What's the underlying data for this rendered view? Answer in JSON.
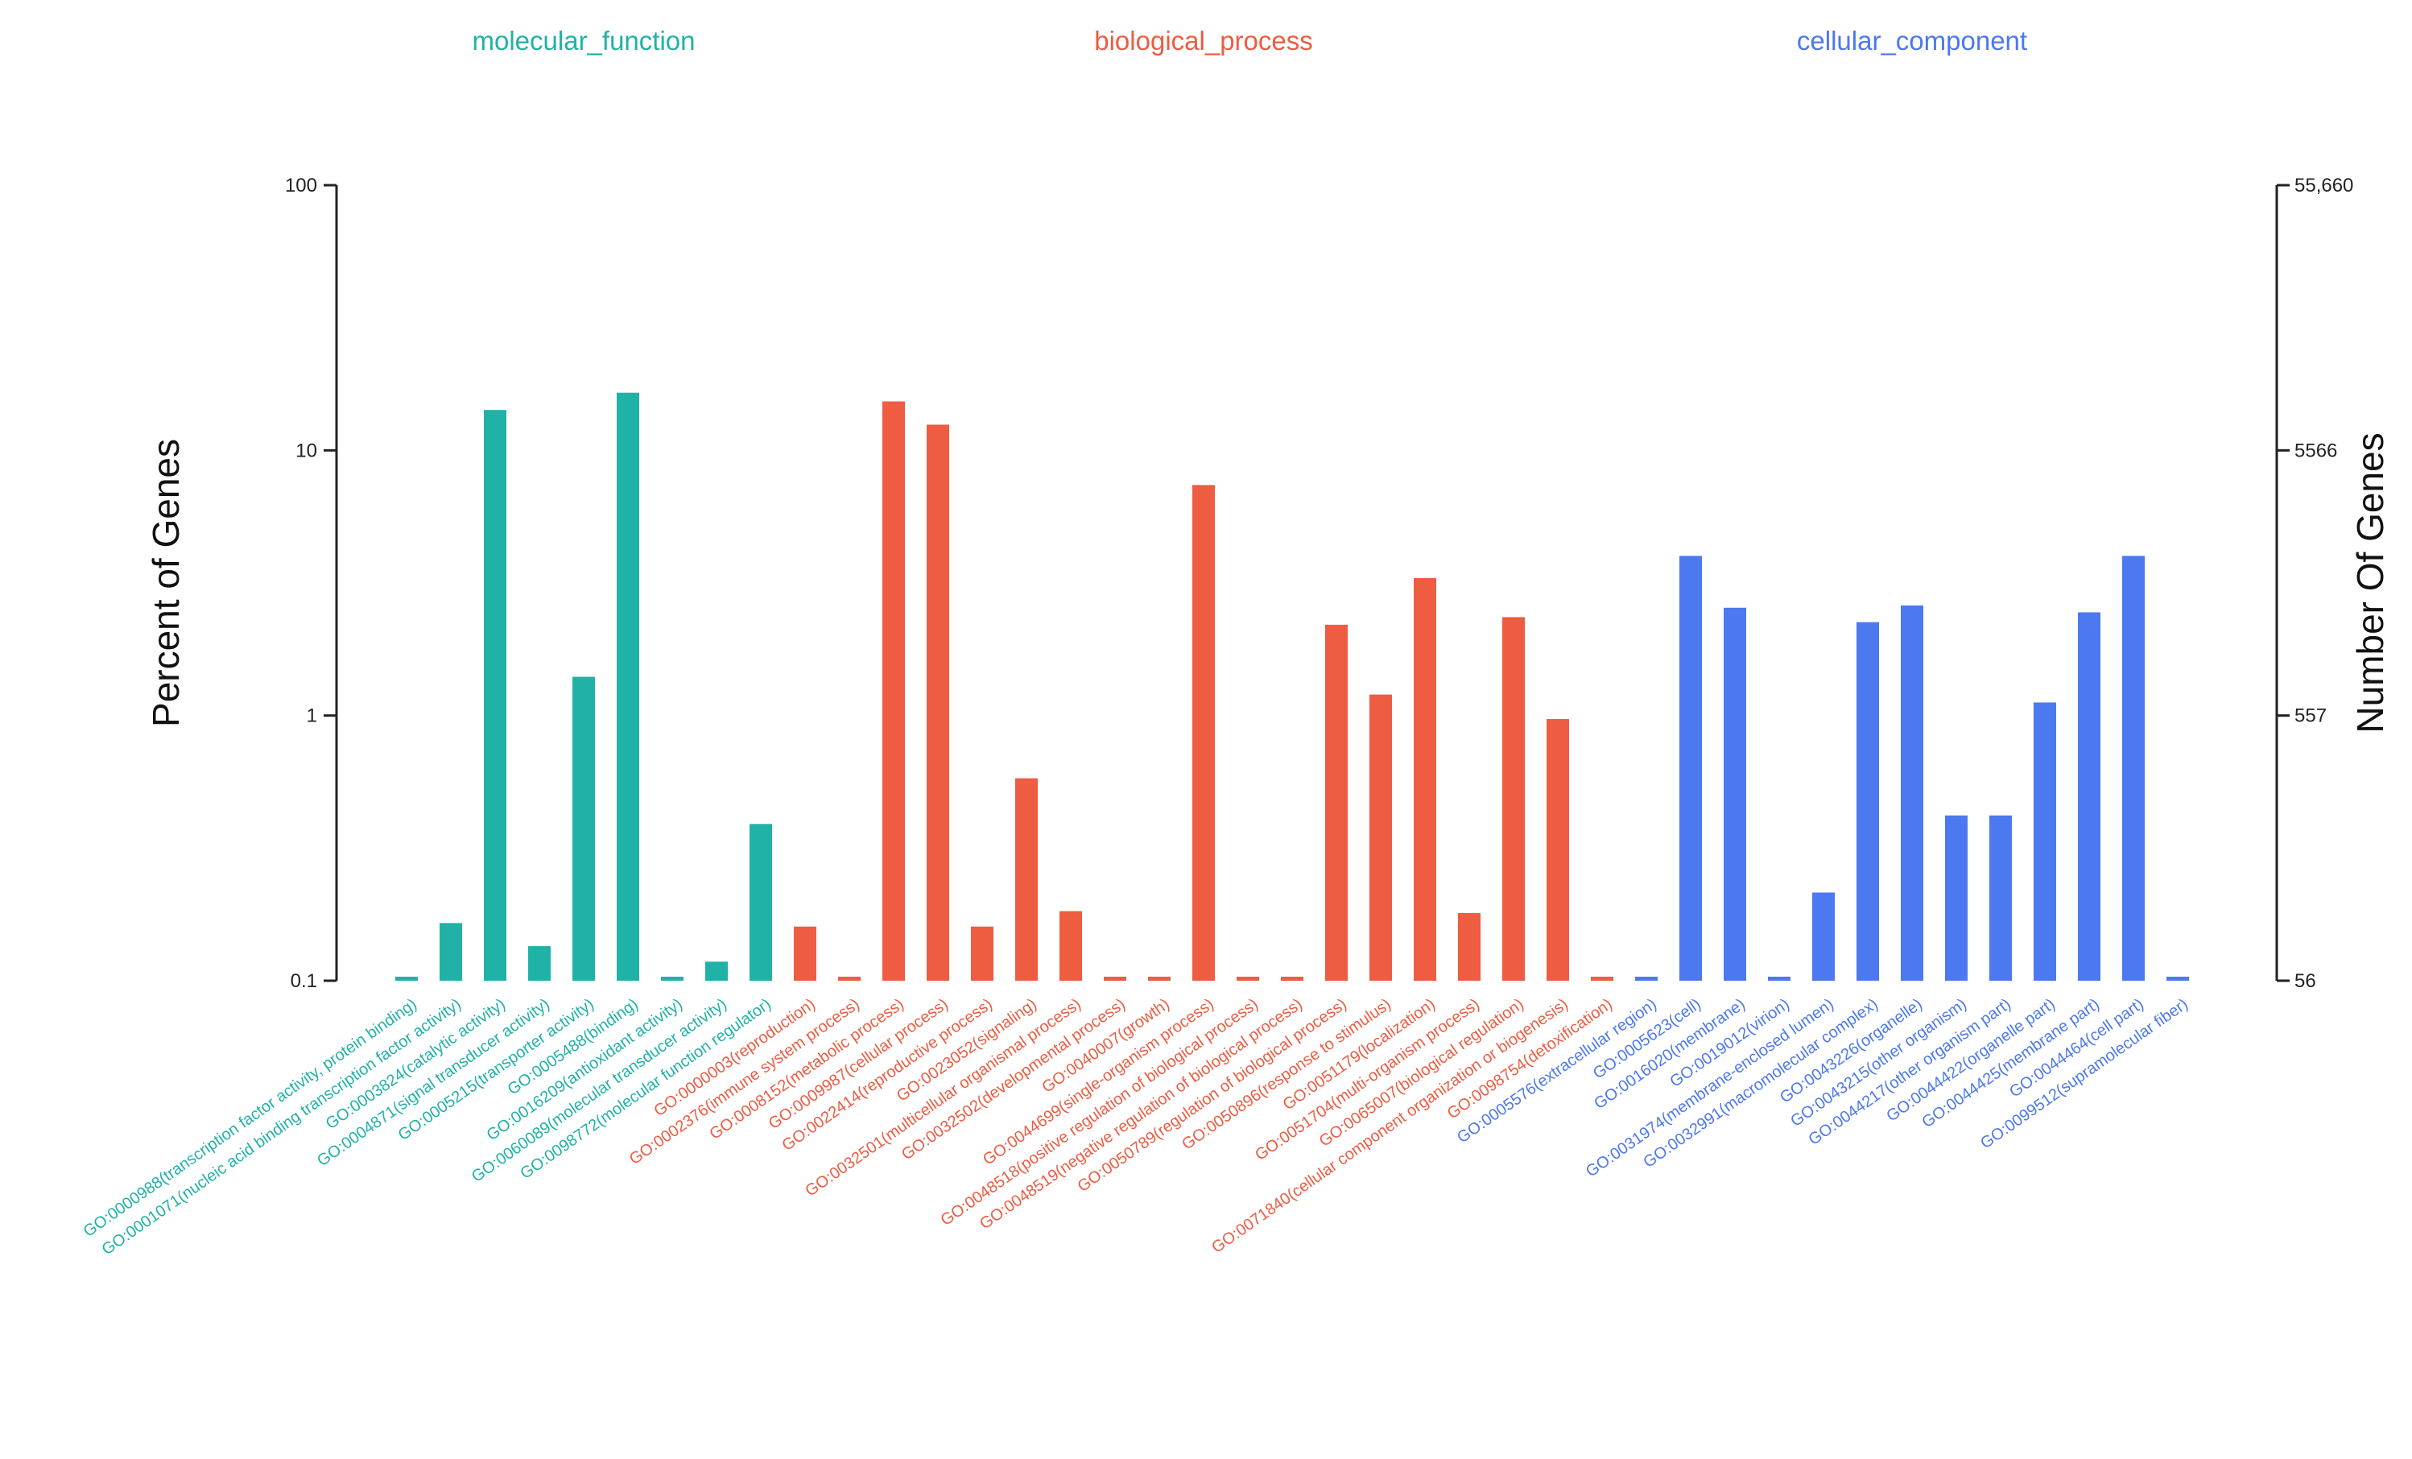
{
  "chart_data": {
    "type": "bar",
    "title": "",
    "ylabel": "Percent of Genes",
    "y2label": "Number Of Genes",
    "yscale": "log",
    "ylim": [
      0.1,
      100
    ],
    "yticks": [
      "100",
      "10",
      "1",
      "0.1"
    ],
    "y2ticks": [
      "55,660",
      "5566",
      "557",
      "56"
    ],
    "grid": false,
    "groups": [
      {
        "name": "molecular_function",
        "color": "#20B2A6",
        "categories": [
          "GO:0000988(transcription factor activity, protein binding)",
          "GO:0001071(nucleic acid binding transcription factor activity)",
          "GO:0003824(catalytic activity)",
          "GO:0004871(signal transducer activity)",
          "GO:0005215(transporter activity)",
          "GO:0005488(binding)",
          "GO:0016209(antioxidant activity)",
          "GO:0060089(molecular transducer activity)",
          "GO:0098772(molecular function regulator)"
        ],
        "values": [
          0.1,
          0.165,
          14.2,
          0.135,
          1.4,
          16.5,
          0.1,
          0.118,
          0.39
        ]
      },
      {
        "name": "biological_process",
        "color": "#EE5C42",
        "categories": [
          "GO:0000003(reproduction)",
          "GO:0002376(immune system process)",
          "GO:0008152(metabolic process)",
          "GO:0009987(cellular process)",
          "GO:0022414(reproductive process)",
          "GO:0023052(signaling)",
          "GO:0032501(multicellular organismal process)",
          "GO:0032502(developmental process)",
          "GO:0040007(growth)",
          "GO:0044699(single-organism process)",
          "GO:0048518(positive regulation of biological process)",
          "GO:0048519(negative regulation of biological process)",
          "GO:0050789(regulation of biological process)",
          "GO:0050896(response to stimulus)",
          "GO:0051179(localization)",
          "GO:0051704(multi-organism process)",
          "GO:0065007(biological regulation)",
          "GO:0071840(cellular component organization or biogenesis)",
          "GO:0098754(detoxification)"
        ],
        "values": [
          0.16,
          0.1,
          15.3,
          12.5,
          0.16,
          0.58,
          0.183,
          0.1,
          0.1,
          7.4,
          0.1,
          0.1,
          2.2,
          1.2,
          3.3,
          0.18,
          2.35,
          0.97,
          0.1
        ]
      },
      {
        "name": "cellular_component",
        "color": "#4C78F0",
        "categories": [
          "GO:0005576(extracellular region)",
          "GO:0005623(cell)",
          "GO:0016020(membrane)",
          "GO:0019012(virion)",
          "GO:0031974(membrane-enclosed lumen)",
          "GO:0032991(macromolecular complex)",
          "GO:0043226(organelle)",
          "GO:0043215(other organism)",
          "GO:0044217(other organism part)",
          "GO:0044422(organelle part)",
          "GO:0044425(membrane part)",
          "GO:0044464(cell part)",
          "GO:0099512(supramolecular fiber)"
        ],
        "values": [
          0.1,
          4.0,
          2.55,
          0.1,
          0.215,
          2.25,
          2.6,
          0.42,
          0.42,
          1.12,
          2.45,
          4.0,
          0.1
        ]
      }
    ]
  }
}
